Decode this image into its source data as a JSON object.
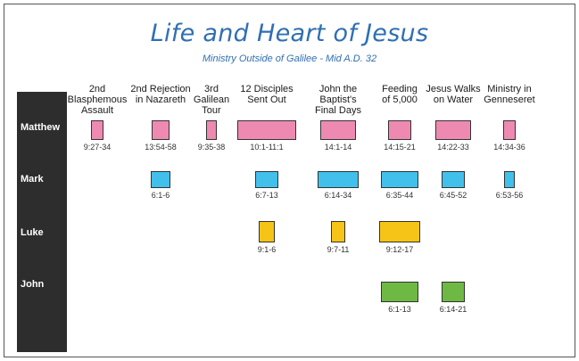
{
  "title": "Life and Heart of Jesus",
  "subtitle": "Ministry Outside of Galilee - Mid A.D. 32",
  "gospels": [
    "Matthew",
    "Mark",
    "Luke",
    "John"
  ],
  "colors": {
    "Matthew": "#ee8ab2",
    "Mark": "#41c0ec",
    "Luke": "#f6c417",
    "John": "#6eb944",
    "sidebar": "#2d2d2d",
    "title": "#2f6fb3"
  },
  "events": [
    {
      "header": [
        "2nd",
        "Blasphemous",
        "Assault"
      ],
      "refs": {
        "Matthew": "9:27-34"
      }
    },
    {
      "header": [
        "2nd Rejection",
        "in Nazareth"
      ],
      "refs": {
        "Matthew": "13:54-58",
        "Mark": "6:1-6"
      }
    },
    {
      "header": [
        "3rd",
        "Galilean",
        "Tour"
      ],
      "refs": {
        "Matthew": "9:35-38"
      }
    },
    {
      "header": [
        "12 Disciples",
        "Sent Out"
      ],
      "refs": {
        "Matthew": "10:1-11:1",
        "Mark": "6:7-13",
        "Luke": "9:1-6"
      }
    },
    {
      "header": [
        "John the",
        "Baptist's",
        "Final Days"
      ],
      "refs": {
        "Matthew": "14:1-14",
        "Mark": "6:14-34",
        "Luke": "9:7-11"
      }
    },
    {
      "header": [
        "Feeding",
        "of 5,000"
      ],
      "refs": {
        "Matthew": "14:15-21",
        "Mark": "6:35-44",
        "Luke": "9:12-17",
        "John": "6:1-13"
      }
    },
    {
      "header": [
        "Jesus Walks",
        "on Water"
      ],
      "refs": {
        "Matthew": "14:22-33",
        "Mark": "6:45-52",
        "John": "6:14-21"
      }
    },
    {
      "header": [
        "Ministry in",
        "Genneseret"
      ],
      "refs": {
        "Matthew": "14:34-36",
        "Mark": "6:53-56"
      }
    }
  ]
}
